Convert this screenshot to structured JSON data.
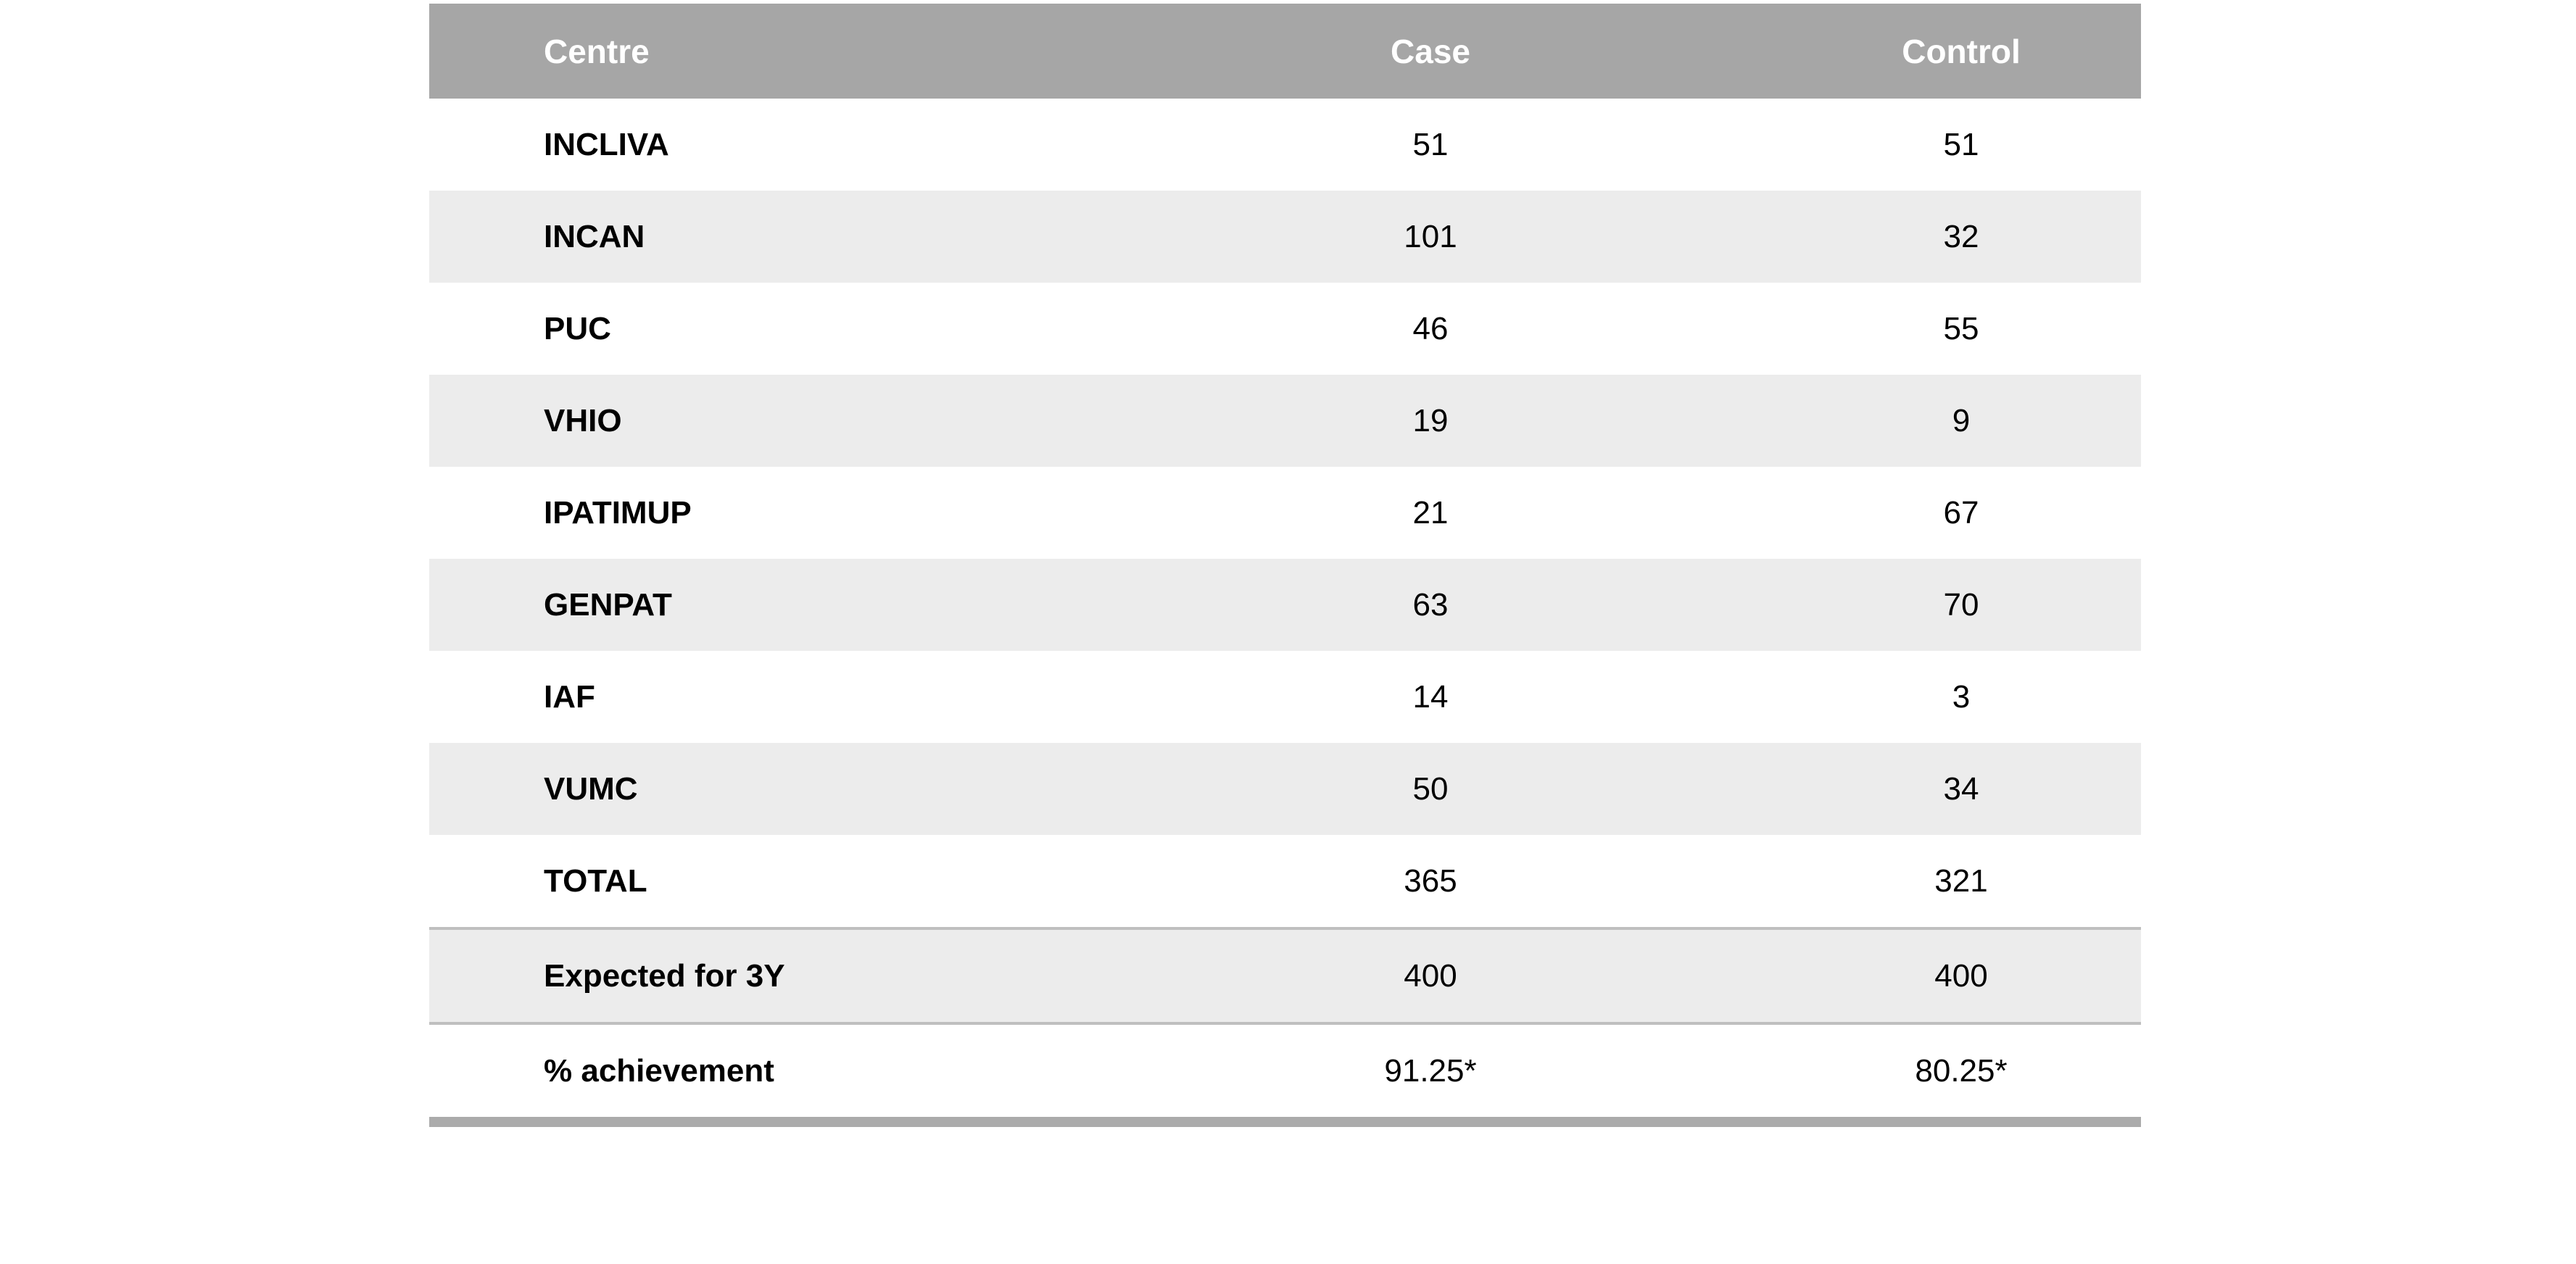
{
  "table": {
    "columns": [
      "Centre",
      "Case",
      "Control"
    ],
    "rows": [
      {
        "centre": "INCLIVA",
        "case": "51",
        "control": "51"
      },
      {
        "centre": "INCAN",
        "case": "101",
        "control": "32"
      },
      {
        "centre": "PUC",
        "case": "46",
        "control": "55"
      },
      {
        "centre": "VHIO",
        "case": "19",
        "control": "9"
      },
      {
        "centre": "IPATIMUP",
        "case": "21",
        "control": "67"
      },
      {
        "centre": "GENPAT",
        "case": "63",
        "control": "70"
      },
      {
        "centre": "IAF",
        "case": "14",
        "control": "3"
      },
      {
        "centre": "VUMC",
        "case": "50",
        "control": "34"
      },
      {
        "centre": "TOTAL",
        "case": "365",
        "control": "321"
      },
      {
        "centre": "Expected for 3Y",
        "case": "400",
        "control": "400"
      },
      {
        "centre": "% achievement",
        "case": "91.25*",
        "control": "80.25*"
      }
    ],
    "colors": {
      "header_bg": "#a6a6a6",
      "header_text": "#ffffff",
      "row_bg": "#ffffff",
      "row_alt_bg": "#ececec",
      "body_text": "#000000",
      "separator_line": "#bfbfbf",
      "bottom_border": "#ababab"
    }
  }
}
